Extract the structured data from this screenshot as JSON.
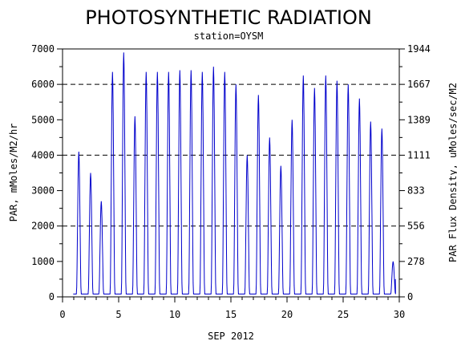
{
  "chart_data": {
    "type": "line",
    "title": "PHOTOSYNTHETIC RADIATION",
    "subtitle": "station=OYSM",
    "xlabel": "SEP 2012",
    "ylabel": "PAR, mMoles/M2/hr",
    "y2label": "PAR Flux Density, uMoles/sec/M2",
    "xlim": [
      0,
      30
    ],
    "ylim": [
      0,
      7000
    ],
    "x_ticks": [
      "0",
      "5",
      "10",
      "15",
      "20",
      "25",
      "30"
    ],
    "y_ticks": [
      "0",
      "1000",
      "2000",
      "3000",
      "4000",
      "5000",
      "6000",
      "7000"
    ],
    "y2_ticks": [
      "0",
      "278",
      "556",
      "833",
      "1111",
      "1389",
      "1667",
      "1944"
    ],
    "grid": "dashed horizontal lines at 2000, 4000 and 6000",
    "line_color": "#0000cc",
    "series": [
      {
        "daily_peaks": [
          {
            "day": 1.45,
            "par": 4100
          },
          {
            "day": 2.5,
            "par": 3500
          },
          {
            "day": 3.45,
            "par": 2700
          },
          {
            "day": 4.45,
            "par": 6350
          },
          {
            "day": 5.45,
            "par": 6900
          },
          {
            "day": 6.45,
            "par": 5100
          },
          {
            "day": 7.45,
            "par": 6350
          },
          {
            "day": 8.45,
            "par": 6350
          },
          {
            "day": 9.45,
            "par": 6350
          },
          {
            "day": 10.45,
            "par": 6400
          },
          {
            "day": 11.45,
            "par": 6400
          },
          {
            "day": 12.45,
            "par": 6350
          },
          {
            "day": 13.45,
            "par": 6500
          },
          {
            "day": 14.45,
            "par": 6350
          },
          {
            "day": 15.45,
            "par": 6000
          },
          {
            "day": 16.45,
            "par": 4000
          },
          {
            "day": 17.45,
            "par": 5700
          },
          {
            "day": 18.45,
            "par": 4500
          },
          {
            "day": 19.45,
            "par": 3700
          },
          {
            "day": 20.45,
            "par": 5000
          },
          {
            "day": 21.45,
            "par": 6250
          },
          {
            "day": 22.45,
            "par": 5900
          },
          {
            "day": 23.45,
            "par": 6250
          },
          {
            "day": 24.45,
            "par": 6100
          },
          {
            "day": 25.45,
            "par": 6000
          },
          {
            "day": 26.45,
            "par": 5600
          },
          {
            "day": 27.45,
            "par": 4950
          },
          {
            "day": 28.45,
            "par": 4750
          },
          {
            "day": 29.45,
            "par": 1000
          }
        ]
      }
    ]
  }
}
